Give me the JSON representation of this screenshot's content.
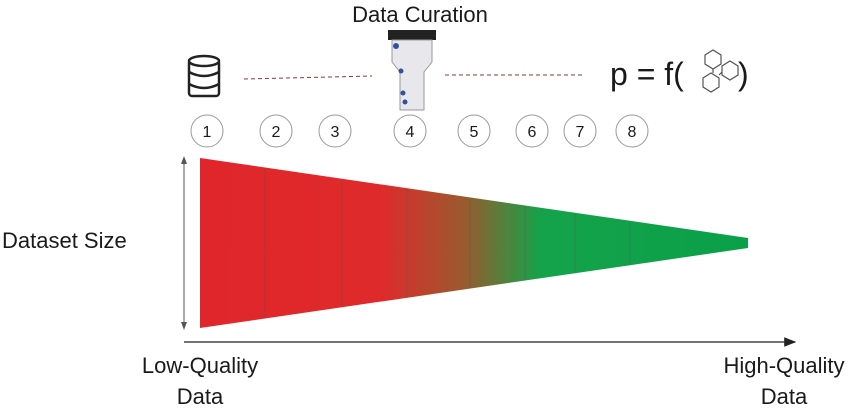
{
  "title": "Data Curation",
  "formula": {
    "prefix": "p = f(",
    "suffix": ")"
  },
  "steps": [
    "1",
    "2",
    "3",
    "4",
    "5",
    "6",
    "7",
    "8"
  ],
  "y_label": "Dataset Size",
  "x_left_label": [
    "Low-Quality",
    "Data"
  ],
  "x_right_label": [
    "High-Quality",
    "Data"
  ]
}
